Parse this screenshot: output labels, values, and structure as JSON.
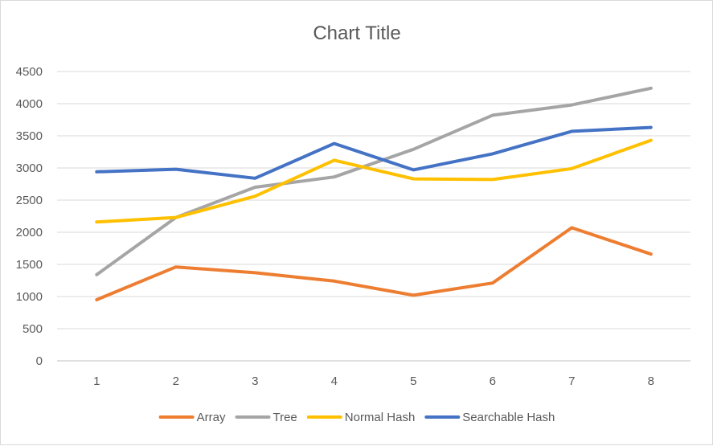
{
  "chart_data": {
    "type": "line",
    "title": "Chart Title",
    "xlabel": "",
    "ylabel": "",
    "categories": [
      "1",
      "2",
      "3",
      "4",
      "5",
      "6",
      "7",
      "8"
    ],
    "ylim": [
      0,
      4500
    ],
    "yticks": [
      0,
      500,
      1000,
      1500,
      2000,
      2500,
      3000,
      3500,
      4000,
      4500
    ],
    "grid": true,
    "legend": "bottom",
    "series": [
      {
        "name": "Array",
        "color": "#ED7D31",
        "values": [
          950,
          1460,
          1370,
          1240,
          1020,
          1210,
          2070,
          1660
        ]
      },
      {
        "name": "Tree",
        "color": "#A5A5A5",
        "values": [
          1340,
          2230,
          2700,
          2860,
          3290,
          3820,
          3980,
          4240
        ]
      },
      {
        "name": "Normal Hash",
        "color": "#FFC000",
        "values": [
          2160,
          2230,
          2560,
          3120,
          2830,
          2820,
          2990,
          3430
        ]
      },
      {
        "name": "Searchable Hash",
        "color": "#4472C4",
        "values": [
          2940,
          2980,
          2840,
          3380,
          2970,
          3220,
          3570,
          3630
        ]
      }
    ]
  }
}
